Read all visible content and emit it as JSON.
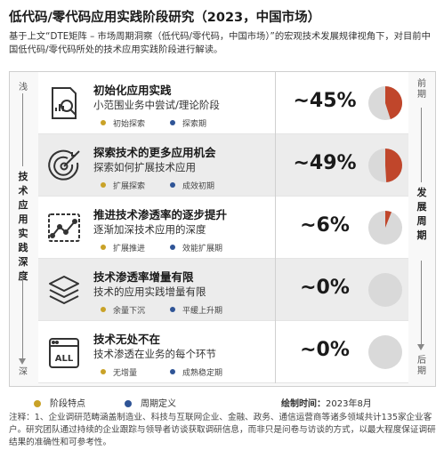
{
  "header": {
    "title": "低代码/零代码应用实践阶段研究（2023，中国市场）",
    "subtitle": "基于上文“DTE矩阵 – 市场周期洞察（低代码/零代码，中国市场）”的宏观技术发展规律视角下，对目前中国低代码/零代码所处的技术应用实践阶段进行解读。"
  },
  "axis_left": {
    "top": "浅",
    "label": "技术应用实践深度",
    "bottom": "深"
  },
  "axis_right": {
    "top": "前期",
    "label": "发展周期",
    "bottom": "后期"
  },
  "colors": {
    "stage_dot": "#c9a227",
    "cycle_dot": "#2f5496",
    "pie_fill": "#c0462b",
    "pie_bg": "#d9d9d9"
  },
  "chart_data": {
    "type": "pie",
    "title": "低代码/零代码应用实践阶段研究（2023，中国市场）",
    "stages": [
      {
        "name": "初始化应用实践",
        "desc": "小范围业务中尝试/理论阶段",
        "stage_tag": "初始探索",
        "cycle_tag": "探索期",
        "label": "~45%",
        "value": 45,
        "icon": "analysis-doc-icon"
      },
      {
        "name": "探索技术的更多应用机会",
        "desc": "探索如何扩展技术应用",
        "stage_tag": "扩展探索",
        "cycle_tag": "成效初期",
        "label": "~49%",
        "value": 49,
        "icon": "target-icon"
      },
      {
        "name": "推进技术渗透率的逐步提升",
        "desc": "逐渐加深技术应用的深度",
        "stage_tag": "扩展推进",
        "cycle_tag": "效能扩展期",
        "label": "~6%",
        "value": 6,
        "icon": "trend-chart-icon"
      },
      {
        "name": "技术渗透率增量有限",
        "desc": "技术的应用实践增量有限",
        "stage_tag": "余量下沉",
        "cycle_tag": "平缓上升期",
        "label": "~0%",
        "value": 0,
        "icon": "layers-icon"
      },
      {
        "name": "技术无处不在",
        "desc": "技术渗透在业务的每个环节",
        "stage_tag": "无增量",
        "cycle_tag": "成熟稳定期",
        "label": "~0%",
        "value": 0,
        "icon": "all-box-icon"
      }
    ]
  },
  "legend": {
    "stage": "阶段特点",
    "cycle": "周期定义"
  },
  "date": {
    "label": "绘制时间：",
    "value": "2023年8月"
  },
  "note": "注释：1、企业调研范畴涵盖制造业、科技与互联网企业、金融、政务、通信运营商等诸多领域共计135家企业客户。研究团队通过持续的企业跟踪与领导者访谈获取调研信息，而非只是问卷与访谈的方式，以最大程度保证调研结果的准确性和可参考性。"
}
